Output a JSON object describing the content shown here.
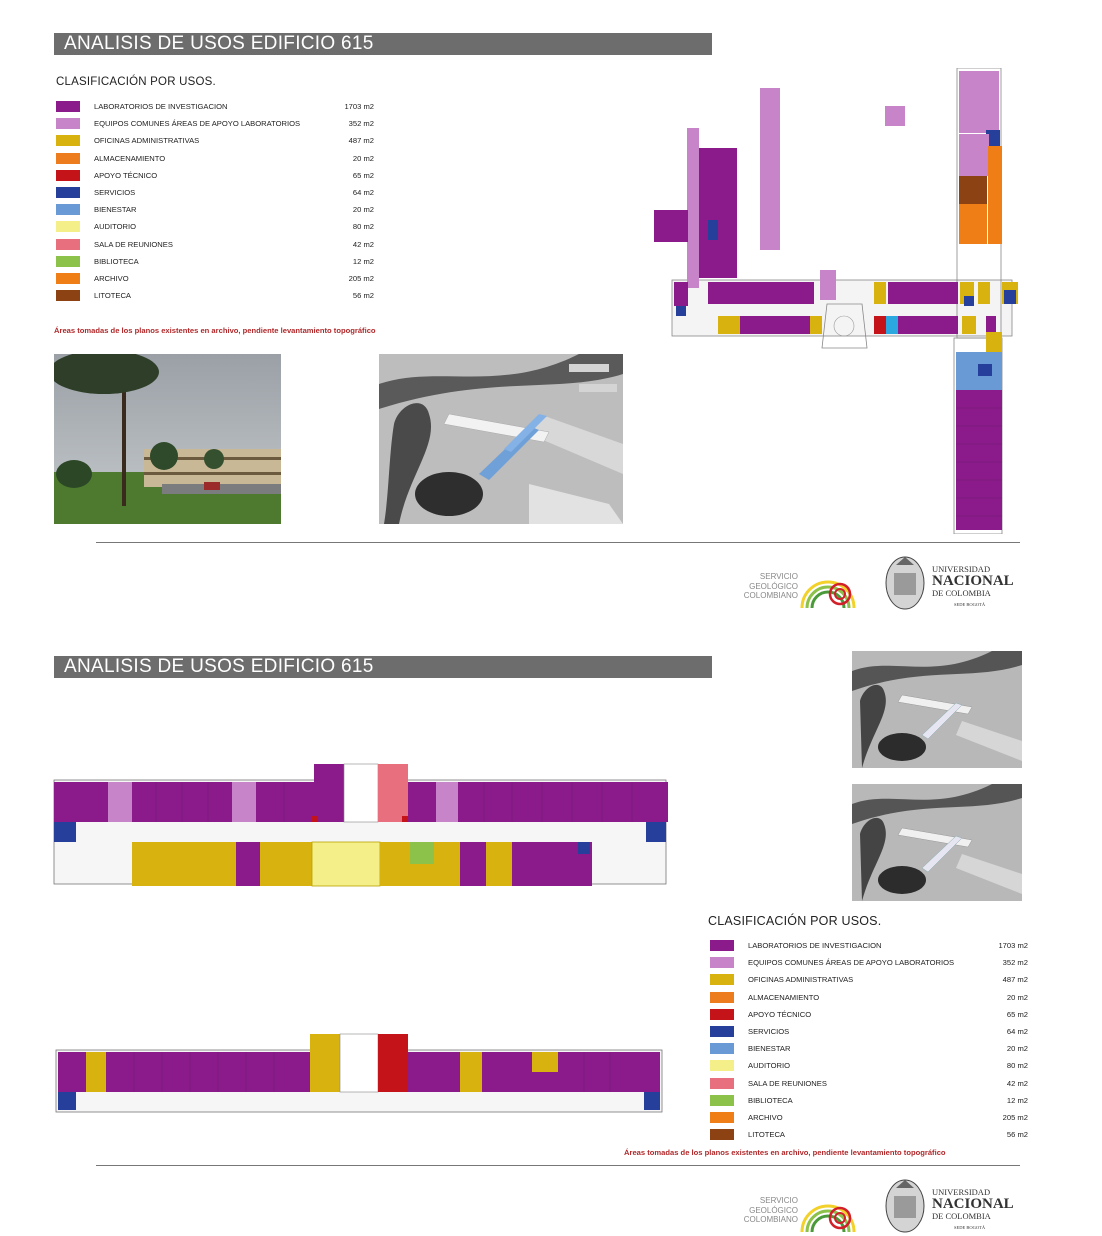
{
  "sheet1": {
    "banner": "ANALISIS DE USOS EDIFICIO 615",
    "classification_title": "CLASIFICACIÓN POR USOS.",
    "note": "Áreas  tomadas de los planos existentes en archivo, pendiente levantamiento topográfico",
    "legend": [
      {
        "label": "LABORATORIOS DE INVESTIGACION",
        "area": "1703 m2",
        "color": "#8b1a8b"
      },
      {
        "label": "EQUIPOS COMUNES ÁREAS DE APOYO LABORATORIOS",
        "area": "352 m2",
        "color": "#c884c8"
      },
      {
        "label": "OFICINAS ADMINISTRATIVAS",
        "area": "487 m2",
        "color": "#d8b20e"
      },
      {
        "label": "ALMACENAMIENTO",
        "area": "20 m2",
        "color": "#ec7c1e"
      },
      {
        "label": "APOYO TÉCNICO",
        "area": "65 m2",
        "color": "#c4141a"
      },
      {
        "label": "SERVICIOS",
        "area": "64 m2",
        "color": "#263f9a"
      },
      {
        "label": "BIENESTAR",
        "area": "20 m2",
        "color": "#6a9ad6"
      },
      {
        "label": "AUDITORIO",
        "area": "80 m2",
        "color": "#f5ef8a"
      },
      {
        "label": "SALA DE REUNIONES",
        "area": "42 m2",
        "color": "#e8707e"
      },
      {
        "label": "BIBLIOTECA",
        "area": "12 m2",
        "color": "#8cc14a"
      },
      {
        "label": "ARCHIVO",
        "area": "205 m2",
        "color": "#f07e16"
      },
      {
        "label": "LITOTECA",
        "area": "56 m2",
        "color": "#8c4212"
      }
    ]
  },
  "sheet2": {
    "banner": "ANALISIS DE USOS EDIFICIO 615",
    "classification_title": "CLASIFICACIÓN POR USOS.",
    "note": "Áreas  tomadas de los planos existentes en archivo, pendiente levantamiento topográfico",
    "legend": [
      {
        "label": "LABORATORIOS DE INVESTIGACION",
        "area": "1703 m2",
        "color": "#8b1a8b"
      },
      {
        "label": "EQUIPOS COMUNES ÁREAS DE APOYO LABORATORIOS",
        "area": "352 m2",
        "color": "#c884c8"
      },
      {
        "label": "OFICINAS ADMINISTRATIVAS",
        "area": "487 m2",
        "color": "#d8b20e"
      },
      {
        "label": "ALMACENAMIENTO",
        "area": "20 m2",
        "color": "#ec7c1e"
      },
      {
        "label": "APOYO TÉCNICO",
        "area": "65 m2",
        "color": "#c4141a"
      },
      {
        "label": "SERVICIOS",
        "area": "64 m2",
        "color": "#263f9a"
      },
      {
        "label": "BIENESTAR",
        "area": "20 m2",
        "color": "#6a9ad6"
      },
      {
        "label": "AUDITORIO",
        "area": "80 m2",
        "color": "#f5ef8a"
      },
      {
        "label": "SALA DE REUNIONES",
        "area": "42 m2",
        "color": "#e8707e"
      },
      {
        "label": "BIBLIOTECA",
        "area": "12 m2",
        "color": "#8cc14a"
      },
      {
        "label": "ARCHIVO",
        "area": "205 m2",
        "color": "#f07e16"
      },
      {
        "label": "LITOTECA",
        "area": "56 m2",
        "color": "#8c4212"
      }
    ]
  },
  "logos": {
    "sgc_line1": "SERVICIO",
    "sgc_line2": "GEOLÓGICO",
    "sgc_line3": "COLOMBIANO",
    "un_line1": "UNIVERSIDAD",
    "un_line2": "NACIONAL",
    "un_line3": "DE COLOMBIA",
    "un_line4": "SEDE BOGOTÁ"
  }
}
